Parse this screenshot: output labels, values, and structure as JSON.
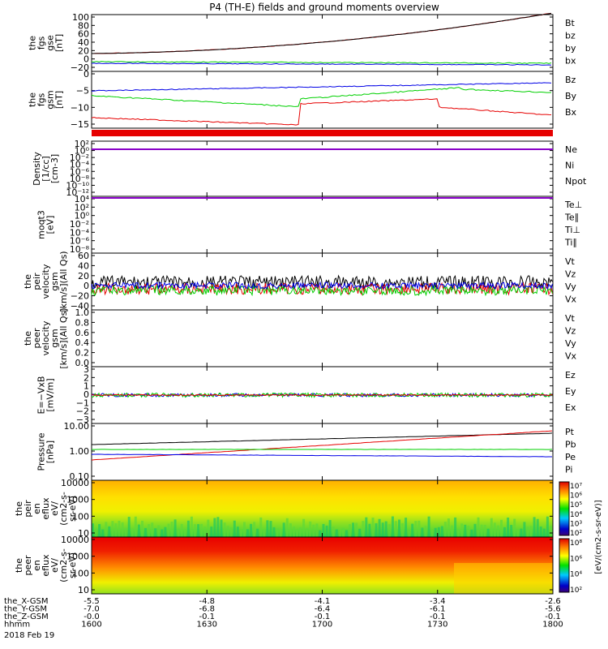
{
  "page": {
    "title": "P4 (TH-E) fields and ground moments overview"
  },
  "colors": {
    "black": "#000000",
    "red": "#e60000",
    "green": "#00d000",
    "blue": "#0000e6",
    "purple": "#8a00c8"
  },
  "chart_data": {
    "type": "line",
    "x_ticks": [
      "1600",
      "1630",
      "1700",
      "1730",
      "1800"
    ],
    "ephemeris": {
      "rows": [
        {
          "label": "the_X-GSM",
          "values": [
            "-5.5",
            "-4.8",
            "-4.1",
            "-3.4",
            "-2.6"
          ]
        },
        {
          "label": "the_Y-GSM",
          "values": [
            "-7.0",
            "-6.8",
            "-6.4",
            "-6.1",
            "-5.6"
          ]
        },
        {
          "label": "the_Z-GSM",
          "values": [
            "-0.0",
            "-0.1",
            "-0.1",
            "-0.1",
            "-0.1"
          ]
        },
        {
          "label": "hhmm",
          "values": [
            "1600",
            "1630",
            "1700",
            "1730",
            "1800"
          ]
        }
      ],
      "date": "2018 Feb 19"
    },
    "panels": [
      {
        "id": "fgs-gse",
        "ylabel": [
          "the",
          "fgs",
          "gse",
          "[nT]"
        ],
        "yticks": [
          "100",
          "80",
          "60",
          "40",
          "20",
          "0",
          "−20"
        ],
        "legend": [
          {
            "t": "Bt",
            "c": "black"
          },
          {
            "t": "bz",
            "c": "red"
          },
          {
            "t": "by",
            "c": "green"
          },
          {
            "t": "bx",
            "c": "blue"
          }
        ]
      },
      {
        "id": "fgs-gsm",
        "ylabel": [
          "the",
          "fgs",
          "gsm",
          "[nT]"
        ],
        "yticks": [
          "0",
          "−5",
          "−10",
          "−15"
        ],
        "legend": [
          {
            "t": "Bz",
            "c": "red"
          },
          {
            "t": "By",
            "c": "green"
          },
          {
            "t": "Bx",
            "c": "blue"
          }
        ]
      },
      {
        "id": "density",
        "ylabel": [
          "Density",
          "[1/cc]",
          "[cm-3]"
        ],
        "yticks": [
          "10²",
          "10⁰",
          "10⁻²",
          "10⁻⁴",
          "10⁻⁶",
          "10⁻⁸",
          "10⁻¹⁰",
          "10⁻¹²"
        ],
        "legend": [
          {
            "t": "Ne",
            "c": "red"
          },
          {
            "t": "Ni",
            "c": "black"
          },
          {
            "t": "Npot",
            "c": "blue"
          }
        ]
      },
      {
        "id": "temperature",
        "ylabel": [
          "moqt3",
          "[eV]"
        ],
        "yticks": [
          "10⁴",
          "10²",
          "10⁰",
          "10⁻²",
          "10⁻⁴",
          "10⁻⁶",
          "10⁻⁸"
        ],
        "legend": [
          {
            "t": "Te⊥",
            "c": "red"
          },
          {
            "t": "Te∥",
            "c": "black"
          },
          {
            "t": "Ti⊥",
            "c": "purple"
          },
          {
            "t": "Ti∥",
            "c": "green"
          }
        ]
      },
      {
        "id": "peir-velocity",
        "ylabel": [
          "the",
          "peir",
          "velocity",
          "gsm",
          "[km/s](All Qs)"
        ],
        "yticks": [
          "60",
          "40",
          "20",
          "0",
          "−20",
          "−40"
        ],
        "legend": [
          {
            "t": "Vt",
            "c": "black"
          },
          {
            "t": "Vz",
            "c": "red"
          },
          {
            "t": "Vy",
            "c": "green"
          },
          {
            "t": "Vx",
            "c": "blue"
          }
        ]
      },
      {
        "id": "peer-velocity",
        "ylabel": [
          "the",
          "peer",
          "velocity",
          "gsm",
          "[km/s](All Qs)"
        ],
        "yticks": [
          "1.0",
          "0.8",
          "0.6",
          "0.4",
          "0.2",
          "0.0"
        ],
        "legend": [
          {
            "t": "Vt",
            "c": "black"
          },
          {
            "t": "Vz",
            "c": "red"
          },
          {
            "t": "Vy",
            "c": "green"
          },
          {
            "t": "Vx",
            "c": "blue"
          }
        ]
      },
      {
        "id": "efield",
        "ylabel": [
          "E=−VxB",
          "[mV/m]"
        ],
        "yticks": [
          "3",
          "2",
          "1",
          "0",
          "−1",
          "−2",
          "−3"
        ],
        "legend": [
          {
            "t": "Ez",
            "c": "red"
          },
          {
            "t": "Ey",
            "c": "green"
          },
          {
            "t": "Ex",
            "c": "blue"
          }
        ]
      },
      {
        "id": "pressure",
        "ylabel": [
          "Pressure",
          "[nPa]"
        ],
        "yticks": [
          "10.00",
          "1.00",
          "0.10"
        ],
        "legend": [
          {
            "t": "Pt",
            "c": "black"
          },
          {
            "t": "Pb",
            "c": "red"
          },
          {
            "t": "Pe",
            "c": "green"
          },
          {
            "t": "Pi",
            "c": "blue"
          }
        ]
      },
      {
        "id": "peir-eflux",
        "ylabel": [
          "the",
          "peir",
          "en",
          "eflux",
          "eV/",
          "(cm2-s-",
          "sr-eV)"
        ],
        "yticks": [
          "10000",
          "1000",
          "100",
          "10"
        ],
        "colorbar": [
          "10⁷",
          "10⁶",
          "10⁵",
          "10⁴",
          "10³",
          "10²"
        ],
        "colorbar_label": "[eV/(cm2-s-sr-eV)] (All Qs)"
      },
      {
        "id": "peer-eflux",
        "ylabel": [
          "the",
          "peer",
          "en",
          "eflux",
          "eV/",
          "(cm2-s-",
          "sr-eV)"
        ],
        "yticks": [
          "10000",
          "1000",
          "100",
          "10"
        ],
        "colorbar": [
          "10⁸",
          "10⁶",
          "10⁴",
          "10²"
        ],
        "colorbar_label": "[eV/(cm2-s-sr-eV)]"
      }
    ]
  }
}
